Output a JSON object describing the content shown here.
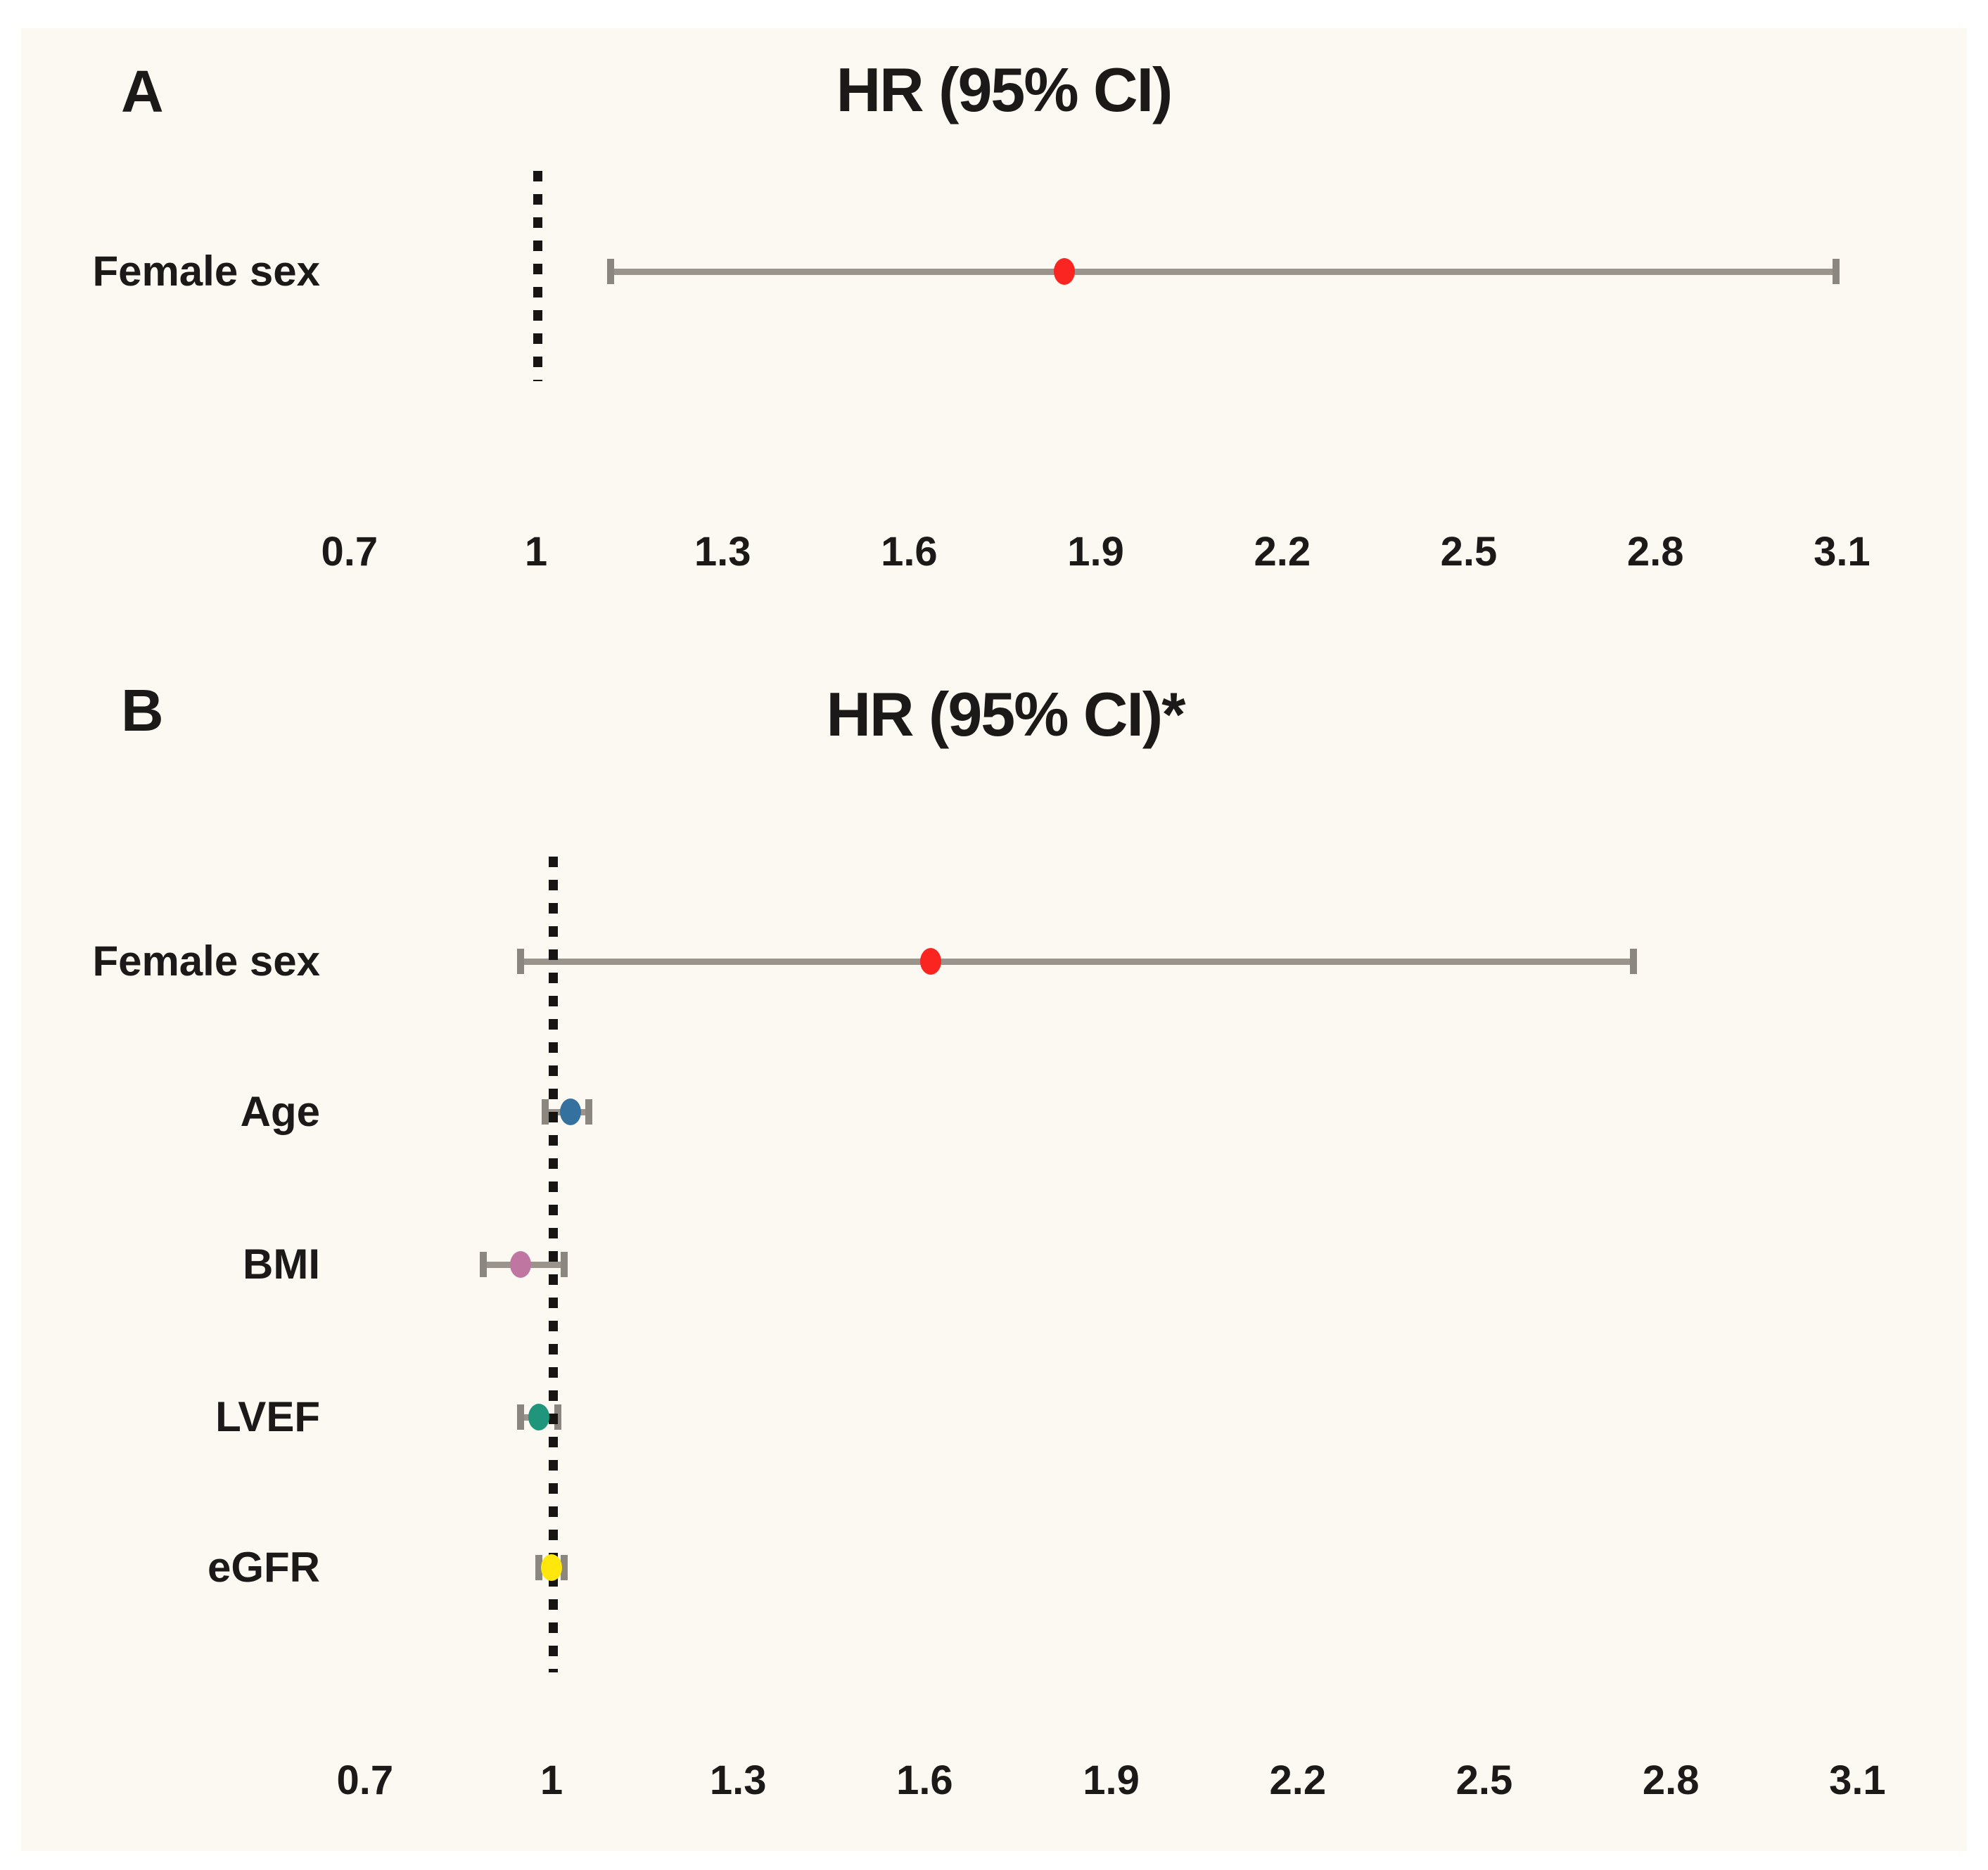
{
  "figure": {
    "background_color": "#fbf9f1",
    "text_color": "#1b1a18"
  },
  "chart_data": [
    {
      "type": "forest",
      "panel": "A",
      "title": "HR (95% CI)",
      "axis_ticks": [
        0.7,
        1,
        1.3,
        1.6,
        1.9,
        2.2,
        2.5,
        2.8,
        3.1
      ],
      "axis_range": [
        0.7,
        3.1
      ],
      "reference_line": 1,
      "reference_line_style": "dotted",
      "ci_color": "#9a948c",
      "cap_color": "#8b867f",
      "rows": [
        {
          "label": "Female sex",
          "hr": 1.85,
          "ci_low": 1.12,
          "ci_high": 3.09,
          "color": "#fa2420",
          "marker": "red-dot"
        }
      ]
    },
    {
      "type": "forest",
      "panel": "B",
      "title": "HR (95% CI)*",
      "axis_ticks": [
        0.7,
        1,
        1.3,
        1.6,
        1.9,
        2.2,
        2.5,
        2.8,
        3.1
      ],
      "axis_range": [
        0.7,
        3.1
      ],
      "reference_line": 1,
      "reference_line_style": "dotted",
      "ci_color": "#9a948c",
      "cap_color": "#8b867f",
      "rows": [
        {
          "label": "Female sex",
          "hr": 1.61,
          "ci_low": 0.95,
          "ci_high": 2.74,
          "color": "#fa2420",
          "marker": "red-dot"
        },
        {
          "label": "Age",
          "hr": 1.03,
          "ci_low": 0.99,
          "ci_high": 1.06,
          "color": "#34719f",
          "marker": "blue-dot"
        },
        {
          "label": "BMI",
          "hr": 0.95,
          "ci_low": 0.89,
          "ci_high": 1.02,
          "color": "#bf77a2",
          "marker": "plum-dot"
        },
        {
          "label": "LVEF",
          "hr": 0.98,
          "ci_low": 0.95,
          "ci_high": 1.01,
          "color": "#1f957c",
          "marker": "teal-dot"
        },
        {
          "label": "eGFR",
          "hr": 1.0,
          "ci_low": 0.98,
          "ci_high": 1.02,
          "color": "#ffe70c",
          "marker": "yellow-dot"
        }
      ]
    }
  ]
}
